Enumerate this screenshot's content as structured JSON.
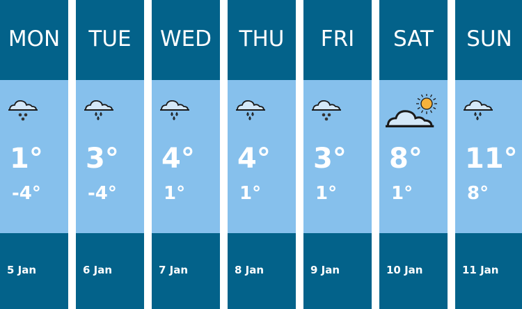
{
  "days": [
    {
      "day": "MON",
      "icon": "cloud-snow-icon",
      "high": "1°",
      "low": "-4°",
      "date": "5 Jan"
    },
    {
      "day": "TUE",
      "icon": "cloud-rain-icon",
      "high": "3°",
      "low": "-4°",
      "date": "6 Jan"
    },
    {
      "day": "WED",
      "icon": "cloud-rain-icon",
      "high": "4°",
      "low": "1°",
      "date": "7 Jan"
    },
    {
      "day": "THU",
      "icon": "cloud-rain-icon",
      "high": "4°",
      "low": "1°",
      "date": "8 Jan"
    },
    {
      "day": "FRI",
      "icon": "cloud-snow-icon",
      "high": "3°",
      "low": "1°",
      "date": "9 Jan"
    },
    {
      "day": "SAT",
      "icon": "sun-cloud-icon",
      "high": "8°",
      "low": "1°",
      "date": "10 Jan"
    },
    {
      "day": "SUN",
      "icon": "cloud-rain-icon",
      "high": "11°",
      "low": "8°",
      "date": "11 Jan"
    }
  ],
  "colors": {
    "header": "#03628a",
    "body": "#86c0ec",
    "sun": "#f6b23c",
    "cloud": "#d4e8f8"
  }
}
